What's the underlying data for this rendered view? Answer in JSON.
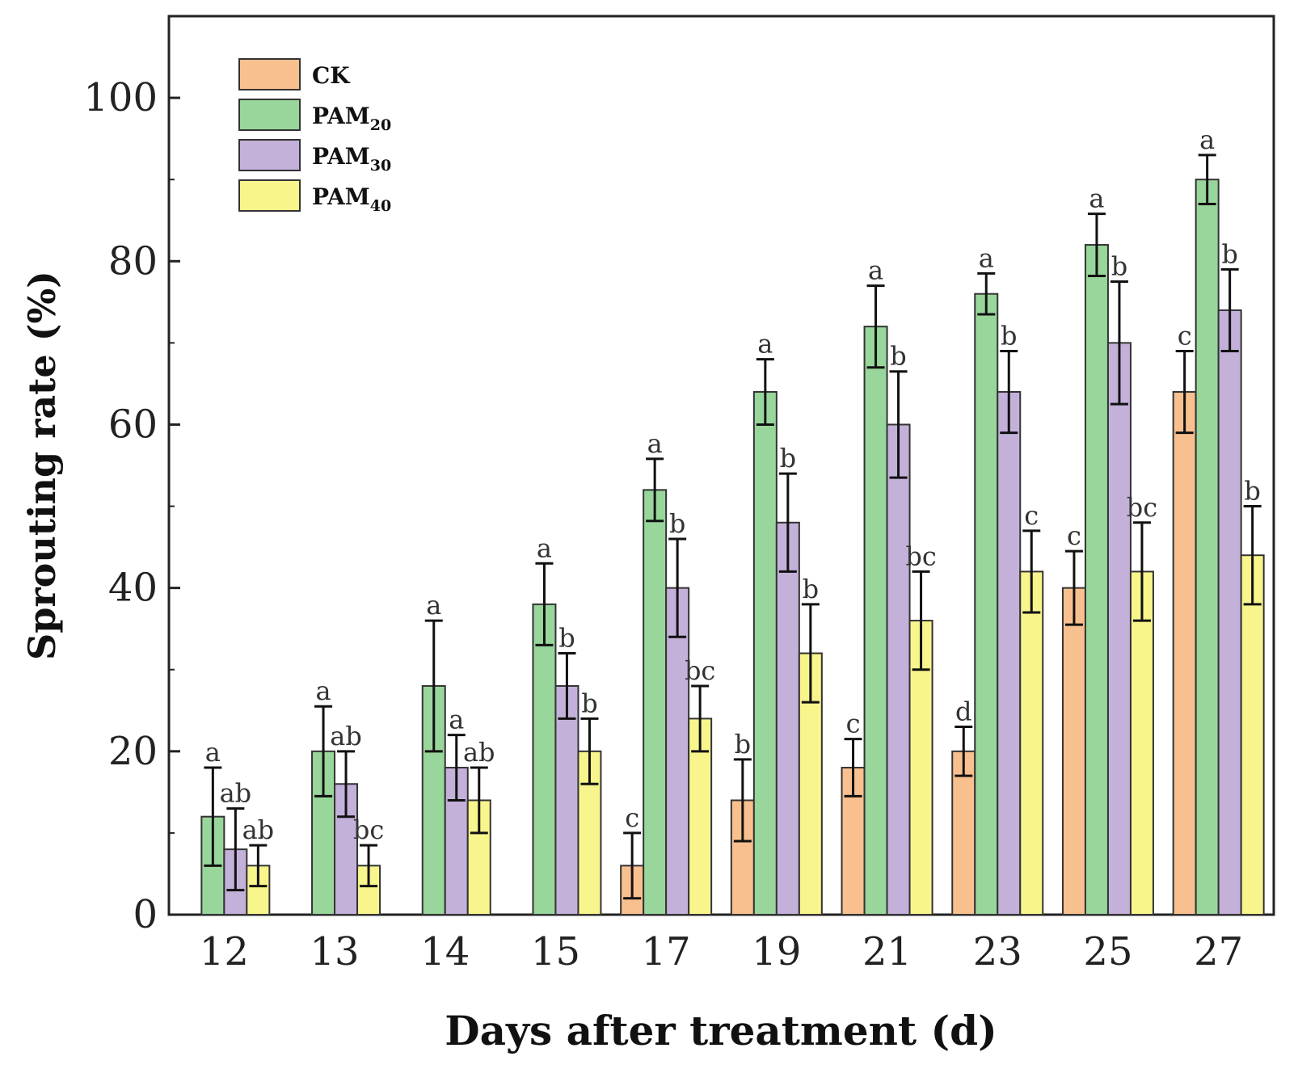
{
  "chart_data": {
    "type": "bar",
    "title": "",
    "xlabel": "Days after treatment (d)",
    "ylabel": "Sprouting rate (%)",
    "ylim": [
      0,
      110
    ],
    "yticks": [
      0,
      20,
      40,
      60,
      80,
      100
    ],
    "legend_position": "top-left",
    "categories": [
      "12",
      "13",
      "14",
      "15",
      "17",
      "19",
      "21",
      "23",
      "25",
      "27"
    ],
    "series": [
      {
        "name": "CK",
        "base": "CK",
        "sub": "",
        "color": "#f9c08f",
        "values": [
          0,
          0,
          0,
          0,
          6,
          14,
          18,
          20,
          40,
          64
        ],
        "errors": [
          0,
          0,
          0,
          0,
          4,
          5,
          3.5,
          3,
          4.5,
          5
        ],
        "labels": [
          "",
          "",
          "",
          "",
          "c",
          "b",
          "c",
          "d",
          "c",
          "c"
        ]
      },
      {
        "name": "PAM20",
        "base": "PAM",
        "sub": "20",
        "color": "#98d69b",
        "values": [
          12,
          20,
          28,
          38,
          52,
          64,
          72,
          76,
          82,
          90
        ],
        "errors": [
          6,
          5.5,
          8,
          5,
          3.8,
          4,
          5,
          2.5,
          3.8,
          3
        ],
        "labels": [
          "a",
          "a",
          "a",
          "a",
          "a",
          "a",
          "a",
          "a",
          "a",
          "a"
        ]
      },
      {
        "name": "PAM30",
        "base": "PAM",
        "sub": "30",
        "color": "#c3b1da",
        "values": [
          8,
          16,
          18,
          28,
          40,
          48,
          60,
          64,
          70,
          74
        ],
        "errors": [
          5,
          4,
          4,
          4,
          6,
          6,
          6.5,
          5,
          7.5,
          5
        ],
        "labels": [
          "ab",
          "ab",
          "a",
          "b",
          "b",
          "b",
          "b",
          "b",
          "b",
          "b"
        ]
      },
      {
        "name": "PAM40",
        "base": "PAM",
        "sub": "40",
        "color": "#f8f58d",
        "values": [
          6,
          6,
          14,
          20,
          24,
          32,
          36,
          42,
          42,
          44
        ],
        "errors": [
          2.5,
          2.5,
          4,
          4,
          4,
          6,
          6,
          5,
          6,
          6
        ],
        "labels": [
          "ab",
          "bc",
          "ab",
          "b",
          "bc",
          "b",
          "bc",
          "c",
          "bc",
          "b"
        ]
      }
    ]
  }
}
